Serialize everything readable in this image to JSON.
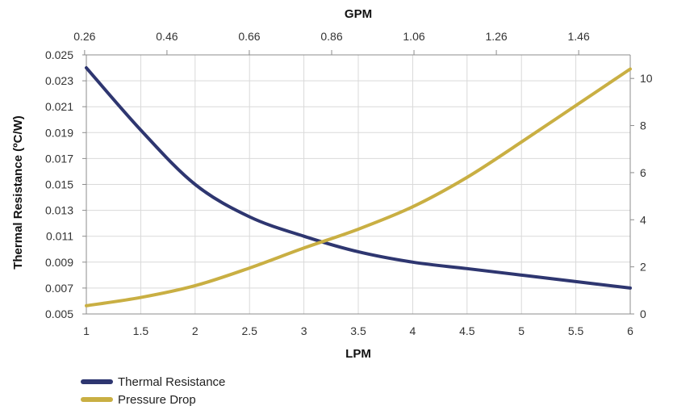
{
  "chart_data": {
    "type": "line",
    "xlabel": "LPM",
    "x2label": "GPM",
    "ylabel": "Thermal Resistance (ºC/W)",
    "y2label": "",
    "xlim": [
      1,
      6
    ],
    "ylim": [
      0.005,
      0.025
    ],
    "y2lim": [
      0,
      11
    ],
    "x_ticks": [
      "1",
      "1.5",
      "2",
      "2.5",
      "3",
      "3.5",
      "4",
      "4.5",
      "5",
      "5.5",
      "6"
    ],
    "y_ticks": [
      "0.005",
      "0.007",
      "0.009",
      "0.011",
      "0.013",
      "0.015",
      "0.017",
      "0.019",
      "0.021",
      "0.023",
      "0.025"
    ],
    "y2_ticks": [
      "0",
      "2",
      "4",
      "6",
      "8",
      "10"
    ],
    "x2_ticks": [
      "0.26",
      "0.46",
      "0.66",
      "0.86",
      "1.06",
      "1.26",
      "1.46"
    ],
    "grid": true,
    "legend_position": "bottom-left",
    "series": [
      {
        "name": "Thermal Resistance",
        "axis": "left",
        "color": "#2E3670",
        "x": [
          1,
          1.5,
          2,
          2.5,
          3,
          3.5,
          4,
          4.5,
          5,
          5.5,
          6
        ],
        "y": [
          0.024,
          0.0192,
          0.015,
          0.0125,
          0.011,
          0.0098,
          0.009,
          0.0085,
          0.008,
          0.0075,
          0.007
        ]
      },
      {
        "name": "Pressure Drop",
        "axis": "right",
        "color": "#C9AF43",
        "x": [
          1,
          1.5,
          2,
          2.5,
          3,
          3.5,
          4,
          4.5,
          5,
          5.5,
          6
        ],
        "y": [
          0.35,
          0.7,
          1.2,
          1.95,
          2.8,
          3.6,
          4.55,
          5.8,
          7.3,
          8.85,
          10.4
        ]
      }
    ]
  }
}
